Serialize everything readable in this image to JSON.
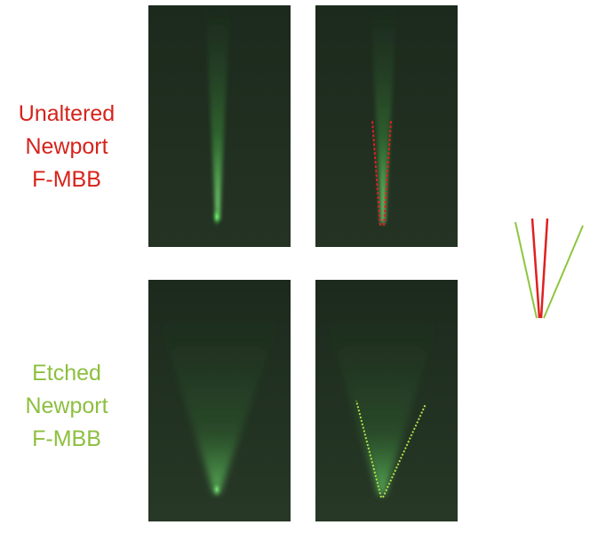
{
  "labels": {
    "unaltered": {
      "line1": "Unaltered",
      "line2": "Newport",
      "line3": "F-MBB",
      "color": "#d6231b"
    },
    "etched": {
      "line1": "Etched",
      "line2": "Newport",
      "line3": "F-MBB",
      "color": "#8dbf3f"
    }
  },
  "photos": [
    {
      "name": "unaltered-beam-photo",
      "overlay": "none"
    },
    {
      "name": "unaltered-beam-photo-annotated",
      "overlay": "red dashed divergence lines"
    },
    {
      "name": "etched-beam-photo",
      "overlay": "none"
    },
    {
      "name": "etched-beam-photo-annotated",
      "overlay": "green dashed divergence lines"
    }
  ],
  "colors": {
    "photo_background": "#1f2a1f",
    "beam": "#6cff6c",
    "unaltered_line": "#e02020",
    "etched_line": "#8dc63f"
  }
}
